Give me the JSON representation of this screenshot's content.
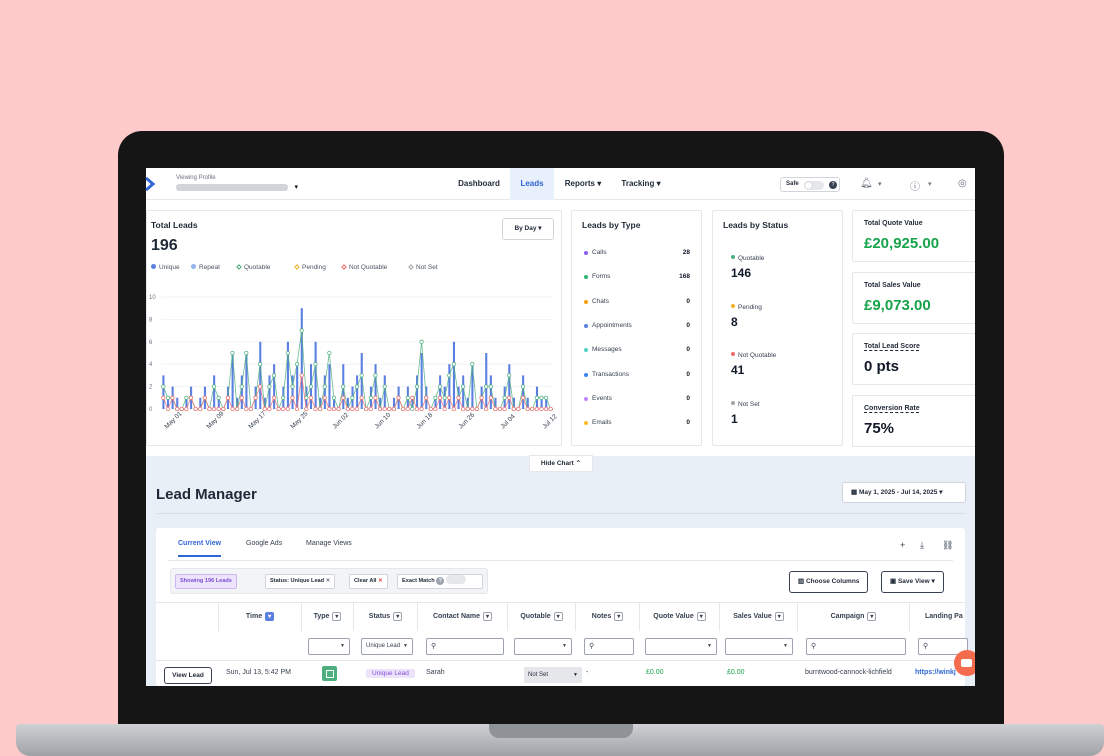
{
  "topbar": {
    "profile_label": "Viewing Profile",
    "nav": [
      "Dashboard",
      "Leads",
      "Reports",
      "Tracking"
    ],
    "safe_label": "Safe"
  },
  "total_leads": {
    "title": "Total Leads",
    "count": "196",
    "period_button": "By Day",
    "legend": [
      {
        "name": "Unique",
        "color": "#5b7fe0",
        "hollow": false
      },
      {
        "name": "Repeat",
        "color": "#93b4ef",
        "hollow": false
      },
      {
        "name": "Quotable",
        "color": "#4caf7d",
        "hollow": true
      },
      {
        "name": "Pending",
        "color": "#f0b429",
        "hollow": true
      },
      {
        "name": "Not Quotable",
        "color": "#ef6b6b",
        "hollow": true
      },
      {
        "name": "Not Set",
        "color": "#a3a3a3",
        "hollow": true
      }
    ]
  },
  "chart_data": {
    "type": "bar",
    "ylim": [
      0,
      10
    ],
    "yticks": [
      0,
      2,
      4,
      6,
      8,
      10
    ],
    "xticks": [
      "May 01",
      "May 09",
      "May 17",
      "May 25",
      "Jun 02",
      "Jun 10",
      "Jun 18",
      "Jun 26",
      "Jul 04",
      "Jul 12"
    ],
    "series": [
      {
        "name": "Unique",
        "values": [
          3,
          1,
          2,
          1,
          0,
          1,
          2,
          0,
          1,
          2,
          0,
          3,
          1,
          0,
          2,
          5,
          1,
          3,
          5,
          0,
          2,
          6,
          1,
          3,
          4,
          0,
          2,
          6,
          3,
          4,
          9,
          2,
          4,
          6,
          1,
          3,
          4,
          1,
          0,
          4,
          1,
          2,
          3,
          5,
          0,
          2,
          4,
          1,
          3,
          0,
          1,
          2,
          0,
          2,
          1,
          3,
          5,
          2,
          0,
          1,
          3,
          2,
          4,
          6,
          2,
          3,
          1,
          4,
          0,
          2,
          5,
          3,
          1,
          0,
          2,
          4,
          1,
          0,
          3,
          1,
          0,
          2,
          1,
          1,
          0
        ]
      },
      {
        "name": "Quotable",
        "values": [
          2,
          1,
          1,
          0,
          0,
          1,
          1,
          0,
          0,
          1,
          0,
          2,
          1,
          0,
          1,
          5,
          0,
          2,
          5,
          0,
          1,
          4,
          0,
          2,
          3,
          0,
          1,
          5,
          2,
          4,
          7,
          1,
          2,
          4,
          0,
          2,
          5,
          1,
          0,
          2,
          0,
          1,
          2,
          3,
          0,
          1,
          3,
          0,
          2,
          0,
          0,
          1,
          0,
          1,
          0,
          2,
          6,
          1,
          0,
          1,
          2,
          1,
          3,
          4,
          1,
          2,
          0,
          4,
          0,
          1,
          2,
          2,
          0,
          0,
          1,
          3,
          0,
          0,
          2,
          0,
          0,
          1,
          1,
          1,
          0
        ]
      },
      {
        "name": "Not Quotable",
        "values": [
          1,
          0,
          1,
          0,
          0,
          0,
          1,
          0,
          0,
          1,
          0,
          0,
          0,
          0,
          1,
          0,
          0,
          1,
          0,
          0,
          1,
          2,
          0,
          0,
          1,
          0,
          0,
          0,
          1,
          0,
          3,
          0,
          1,
          0,
          0,
          1,
          0,
          0,
          0,
          1,
          0,
          0,
          0,
          1,
          0,
          0,
          1,
          0,
          0,
          0,
          0,
          1,
          0,
          0,
          1,
          0,
          0,
          1,
          0,
          0,
          1,
          0,
          1,
          0,
          1,
          0,
          0,
          0,
          0,
          1,
          0,
          1,
          0,
          0,
          0,
          1,
          0,
          0,
          1,
          0,
          0,
          0,
          0,
          0,
          0
        ]
      }
    ]
  },
  "leads_by_type": {
    "title": "Leads by Type",
    "items": [
      {
        "label": "Calls",
        "count": "28",
        "color": "#8b5cf6"
      },
      {
        "label": "Forms",
        "count": "168",
        "color": "#2bb673"
      },
      {
        "label": "Chats",
        "count": "0",
        "color": "#f59e0b"
      },
      {
        "label": "Appointments",
        "count": "0",
        "color": "#5b7fe0"
      },
      {
        "label": "Messages",
        "count": "0",
        "color": "#4fd1c5"
      },
      {
        "label": "Transactions",
        "count": "0",
        "color": "#3b82f6"
      },
      {
        "label": "Events",
        "count": "0",
        "color": "#c084fc"
      },
      {
        "label": "Emails",
        "count": "0",
        "color": "#fbbf24"
      }
    ]
  },
  "leads_by_status": {
    "title": "Leads by Status",
    "items": [
      {
        "label": "Quotable",
        "count": "146",
        "color": "#4caf7d"
      },
      {
        "label": "Pending",
        "count": "8",
        "color": "#f0b429"
      },
      {
        "label": "Not Quotable",
        "count": "41",
        "color": "#ef6b6b"
      },
      {
        "label": "Not Set",
        "count": "1",
        "color": "#a3a3a3"
      }
    ]
  },
  "value_cards": [
    {
      "title": "Total Quote Value",
      "value": "£20,925.00",
      "color": "#16a34a",
      "underline": false
    },
    {
      "title": "Total Sales Value",
      "value": "£9,073.00",
      "color": "#16a34a",
      "underline": false
    },
    {
      "title": "Total Lead Score",
      "value": "0 pts",
      "color": "#111827",
      "underline": true
    },
    {
      "title": "Conversion Rate",
      "value": "75%",
      "color": "#111827",
      "underline": true
    }
  ],
  "hide_chart": "Hide Chart",
  "lead_manager": {
    "title": "Lead Manager",
    "date_range": "May 1, 2025 - Jul 14, 2025",
    "tabs": [
      "Current View",
      "Google Ads",
      "Manage Views"
    ],
    "chips": {
      "showing": "Showing 196 Leads",
      "status": "Status: Unique Lead",
      "clear": "Clear All",
      "exact": "Exact Match"
    },
    "choose_columns": "Choose Columns",
    "save_view": "Save View",
    "columns": [
      "Time",
      "Type",
      "Status",
      "Contact Name",
      "Quotable",
      "Notes",
      "Quote Value",
      "Sales Value",
      "Campaign",
      "Landing Pa"
    ],
    "status_filter": "Unique Lead",
    "row": {
      "button": "View Lead",
      "time": "Sun, Jul 13, 5:42 PM",
      "status": "Unique Lead",
      "contact": "Sarah",
      "quotable": "Not Set",
      "notes": "-",
      "quote_value": "£0.00",
      "sales_value": "£0.00",
      "campaign": "burntwood-cannock-lichfield",
      "landing": "https://winkj"
    }
  }
}
